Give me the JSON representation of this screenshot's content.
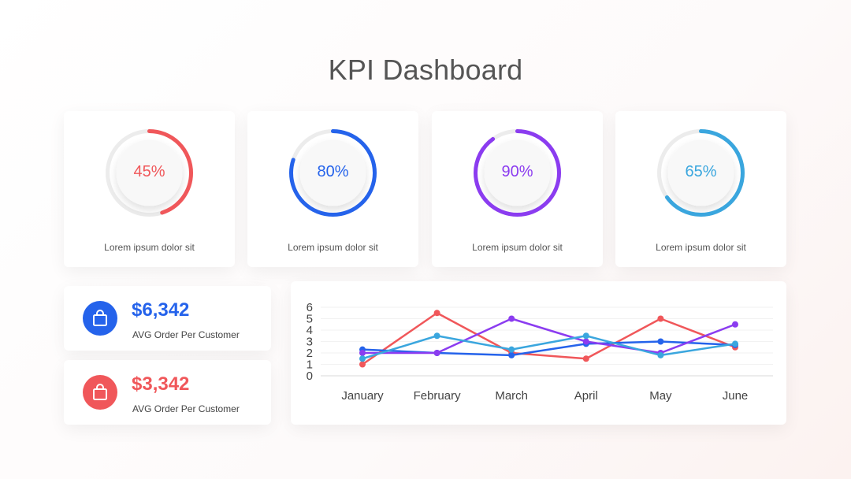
{
  "page": {
    "title": "KPI Dashboard"
  },
  "kpis": [
    {
      "percent": 45,
      "label": "45%",
      "caption": "Lorem ipsum dolor sit",
      "color": "#f0575a"
    },
    {
      "percent": 80,
      "label": "80%",
      "caption": "Lorem ipsum dolor sit",
      "color": "#2563eb"
    },
    {
      "percent": 90,
      "label": "90%",
      "caption": "Lorem ipsum dolor sit",
      "color": "#8b3cf0"
    },
    {
      "percent": 65,
      "label": "65%",
      "caption": "Lorem ipsum dolor sit",
      "color": "#3aa6de"
    }
  ],
  "orders": [
    {
      "amount": "$6,342",
      "label": "AVG Order Per Customer",
      "color": "#2563eb",
      "icon": "shopping-bag-icon"
    },
    {
      "amount": "$3,342",
      "label": "AVG Order Per Customer",
      "color": "#f0575a",
      "icon": "shopping-bag-icon"
    }
  ],
  "chart_data": {
    "type": "line",
    "title": "",
    "xlabel": "",
    "ylabel": "",
    "categories": [
      "January",
      "February",
      "March",
      "April",
      "May",
      "June"
    ],
    "ylim": [
      0,
      6
    ],
    "yticks": [
      0,
      1,
      2,
      3,
      4,
      5,
      6
    ],
    "grid": true,
    "series": [
      {
        "values": [
          1.0,
          5.5,
          2.0,
          1.5,
          5.0,
          2.5
        ],
        "color": "#f0575a"
      },
      {
        "values": [
          2.3,
          2.0,
          1.8,
          2.8,
          3.0,
          2.7
        ],
        "color": "#2563eb"
      },
      {
        "values": [
          2.0,
          2.0,
          5.0,
          3.0,
          2.0,
          4.5
        ],
        "color": "#8b3cf0"
      },
      {
        "values": [
          1.5,
          3.5,
          2.3,
          3.5,
          1.8,
          2.8
        ],
        "color": "#3aa6de"
      }
    ]
  }
}
